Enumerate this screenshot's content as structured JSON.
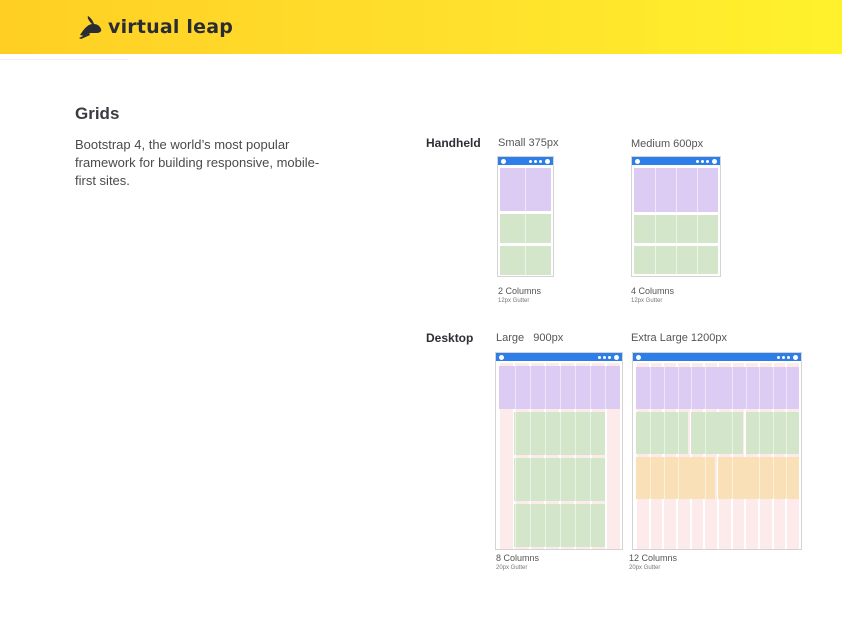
{
  "header": {
    "logo_text": "virtual leap",
    "logo_icon": "rabbit-icon"
  },
  "section": {
    "title": "Grids",
    "description": "Bootstrap 4, the world’s most popular framework for building responsive, mobile-first sites."
  },
  "rows": {
    "handheld": "Handheld",
    "desktop": "Desktop"
  },
  "grids": {
    "small": {
      "label": "Small 375px",
      "columns": "2 Columns",
      "gutter": "12px Gutter"
    },
    "medium": {
      "label": "Medium 600px",
      "columns": "4 Columns",
      "gutter": "12px Gutter"
    },
    "large": {
      "label": "Large   900px",
      "columns": "8 Columns",
      "gutter": "20px Gutter"
    },
    "xlarge": {
      "label": "Extra Large 1200px",
      "columns": "12 Columns",
      "gutter": "20px Gutter"
    }
  },
  "colors": {
    "banner_start": "#ffcf24",
    "banner_end": "#fff22c",
    "browser_bar": "#2d7ee8",
    "content_purple": "#dccbf3",
    "content_green": "#d3e6c9",
    "content_orange": "#f9e0b6",
    "column_guide": "#fde8e8"
  }
}
